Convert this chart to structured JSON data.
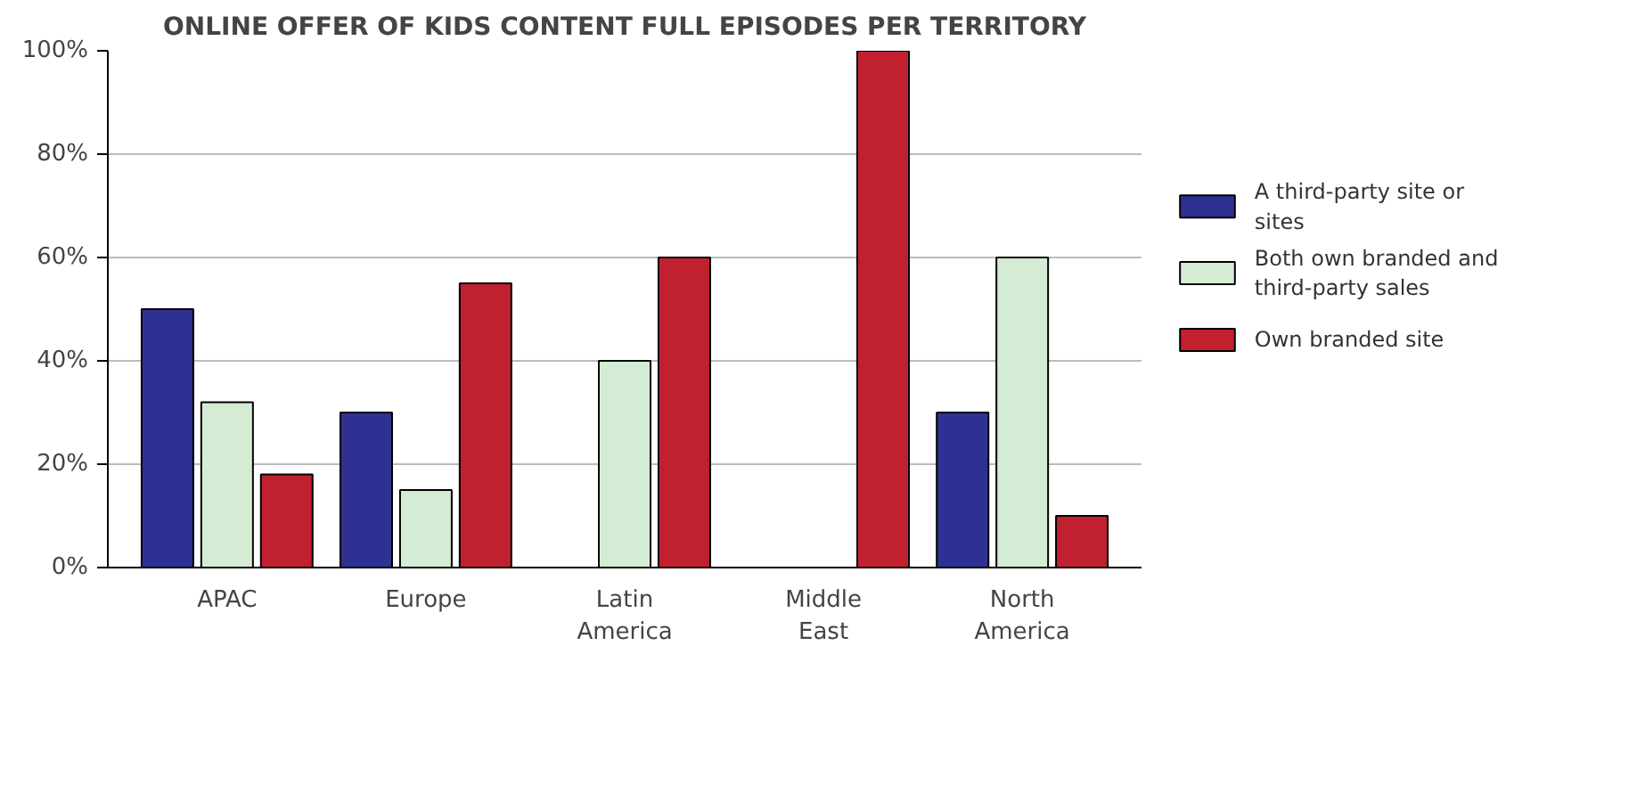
{
  "chart_data": {
    "type": "bar",
    "title": "ONLINE OFFER OF KIDS CONTENT FULL EPISODES PER TERRITORY",
    "categories": [
      "APAC",
      "Europe",
      "Latin\nAmerica",
      "Middle\nEast",
      "North\nAmerica"
    ],
    "series": [
      {
        "name": "A third-party site or sites",
        "color": "#2e3192",
        "values": [
          50,
          30,
          null,
          null,
          30
        ]
      },
      {
        "name": "Both own branded and third-party sales",
        "color": "#d5ecd4",
        "values": [
          32,
          15,
          40,
          null,
          60
        ]
      },
      {
        "name": "Own branded site",
        "color": "#c1202f",
        "values": [
          18,
          55,
          60,
          100,
          10
        ]
      }
    ],
    "ylim": [
      0,
      100
    ],
    "yticks": [
      {
        "value": 0,
        "label": "0%"
      },
      {
        "value": 20,
        "label": "20%"
      },
      {
        "value": 40,
        "label": "40%"
      },
      {
        "value": 60,
        "label": "60%"
      },
      {
        "value": 80,
        "label": "80%"
      },
      {
        "value": 100,
        "label": "100%"
      }
    ],
    "grid": "y",
    "legend": "right"
  }
}
